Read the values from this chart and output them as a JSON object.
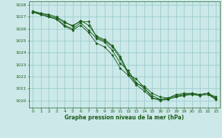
{
  "xlabel": "Graphe pression niveau de la mer (hPa)",
  "bg_color": "#cce8e8",
  "grid_color": "#99cccc",
  "line_color": "#1a5c1a",
  "marker_color": "#1a5c1a",
  "ylim": [
    1019.4,
    1028.3
  ],
  "xlim": [
    -0.5,
    23.5
  ],
  "yticks": [
    1020,
    1021,
    1022,
    1023,
    1024,
    1025,
    1026,
    1027,
    1028
  ],
  "xticks": [
    0,
    1,
    2,
    3,
    4,
    5,
    6,
    7,
    8,
    9,
    10,
    11,
    12,
    13,
    14,
    15,
    16,
    17,
    18,
    19,
    20,
    21,
    22,
    23
  ],
  "lines": [
    [
      1027.4,
      1027.3,
      1027.1,
      1026.9,
      1026.5,
      1026.3,
      1026.6,
      1026.6,
      1025.3,
      1025.0,
      1024.5,
      1023.5,
      1022.2,
      1021.8,
      1021.1,
      1020.2,
      1020.1,
      1020.2,
      1020.4,
      1020.5,
      1020.6,
      1020.5,
      1020.6,
      1020.2
    ],
    [
      1027.4,
      1027.2,
      1027.0,
      1026.8,
      1026.3,
      1026.0,
      1026.5,
      1025.9,
      1025.2,
      1024.9,
      1024.2,
      1023.1,
      1022.5,
      1021.5,
      1021.0,
      1020.4,
      1020.1,
      1020.1,
      1020.3,
      1020.5,
      1020.5,
      1020.5,
      1020.6,
      1020.1
    ],
    [
      1027.4,
      1027.2,
      1027.0,
      1026.8,
      1026.2,
      1025.9,
      1026.3,
      1025.7,
      1024.8,
      1024.5,
      1023.8,
      1022.7,
      1022.1,
      1021.3,
      1020.8,
      1020.2,
      1020.0,
      1020.1,
      1020.3,
      1020.4,
      1020.5,
      1020.4,
      1020.5,
      1020.1
    ],
    [
      1027.5,
      1027.3,
      1027.2,
      1027.0,
      1026.6,
      1026.2,
      1026.7,
      1026.3,
      1025.4,
      1025.1,
      1024.6,
      1023.7,
      1022.3,
      1021.4,
      1021.2,
      1020.6,
      1020.3,
      1020.2,
      1020.5,
      1020.6,
      1020.6,
      1020.5,
      1020.6,
      1020.3
    ]
  ]
}
